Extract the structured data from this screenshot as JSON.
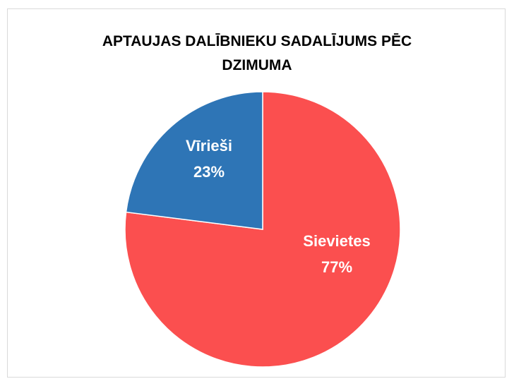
{
  "chart_data": {
    "type": "pie",
    "title": "APTAUJAS DALĪBNIEKU SADALĪJUMS PĒC DZIMUMA",
    "categories": [
      "Sievietes",
      "Vīrieši"
    ],
    "values": [
      77,
      23
    ],
    "value_labels": [
      "77%",
      "23%"
    ],
    "colors": [
      "#fb4f4f",
      "#2e75b6"
    ]
  }
}
